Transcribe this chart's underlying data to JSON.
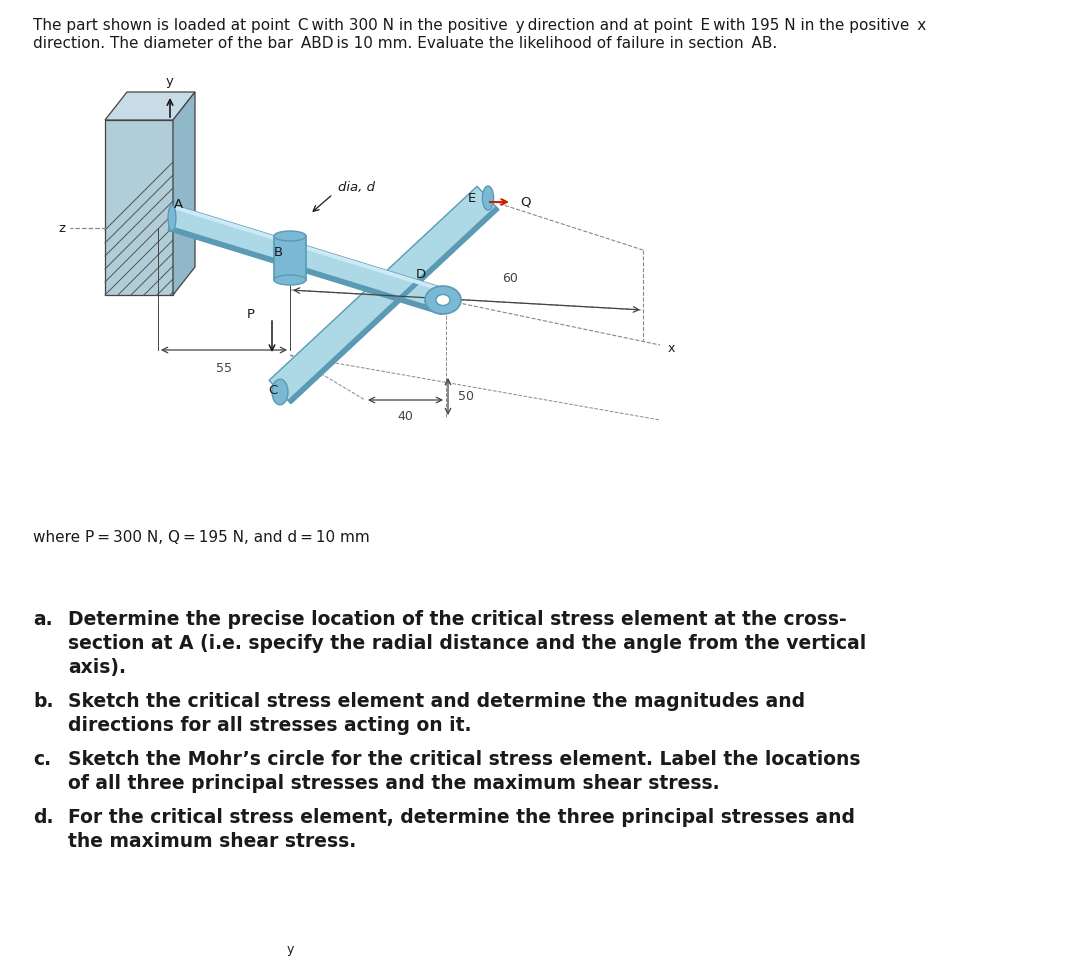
{
  "bg_color": "#ffffff",
  "text_color": "#1a1a1a",
  "header_line1": "The part shown is loaded at point  C with 300 N in the positive  y direction and at point  E with 195 N in the positive  x",
  "header_line2": "direction. The diameter of the bar  ABD is 10 mm. Evaluate the likelihood of failure in section  AB.",
  "params_text": "where P = 300 N, Q = 195 N, and d = 10 mm",
  "dim_55": "55",
  "dim_60": "60",
  "dim_40": "40",
  "dim_50": "50",
  "label_A": "A",
  "label_B": "B",
  "label_C": "C",
  "label_D": "D",
  "label_E": "E",
  "label_Q": "Q",
  "label_P": "P",
  "label_x": "x",
  "label_y": "y",
  "label_z": "z",
  "label_dia": "dia, d",
  "bar_color_light": "#ADD8E6",
  "bar_color_mid": "#7BB8D4",
  "bar_color_dark": "#5A9AB5",
  "wall_front_color": "#B0CDD8",
  "wall_side_color": "#90B8C8",
  "wall_top_color": "#C8DCE8",
  "hatch_color": "#555555",
  "arrow_color_red": "#CC2200",
  "line_color": "#444444",
  "dim_line_color": "#444444",
  "axis_dash_color": "#888888",
  "q_fontsize": 13.5,
  "header_fontsize": 11,
  "params_fontsize": 11
}
